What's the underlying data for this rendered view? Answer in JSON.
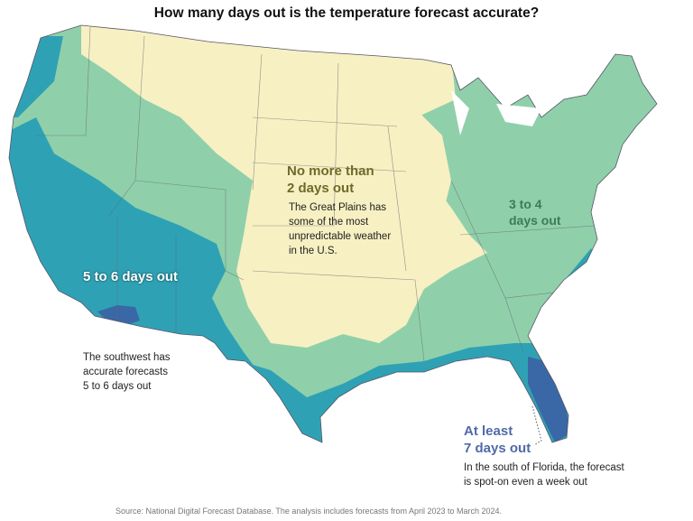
{
  "title": "How many days out is the temperature forecast accurate?",
  "annotations": {
    "plains_heading": [
      "No more than",
      "2 days out"
    ],
    "plains_text": [
      "The Great Plains has",
      "some of the most",
      "unpredictable weather",
      "in the U.S."
    ],
    "east_heading": [
      "3 to 4",
      "days out"
    ],
    "southwest_heading": "5 to 6 days out",
    "southwest_text": [
      "The southwest has",
      "accurate forecasts",
      "5 to 6 days out"
    ],
    "florida_heading": [
      "At least",
      "7 days out"
    ],
    "florida_text": [
      "In the south of Florida, the forecast",
      "is spot-on even a week out"
    ]
  },
  "source": "Source: National Digital Forecast Database. The analysis includes forecasts from April 2023 to March 2024.",
  "legend_colors": {
    "no_more_than_2_days": "#f7f0c2",
    "3_to_4_days": "#8fd0aa",
    "5_to_6_days": "#2ea2b4",
    "at_least_7_days": "#3a68a6"
  }
}
